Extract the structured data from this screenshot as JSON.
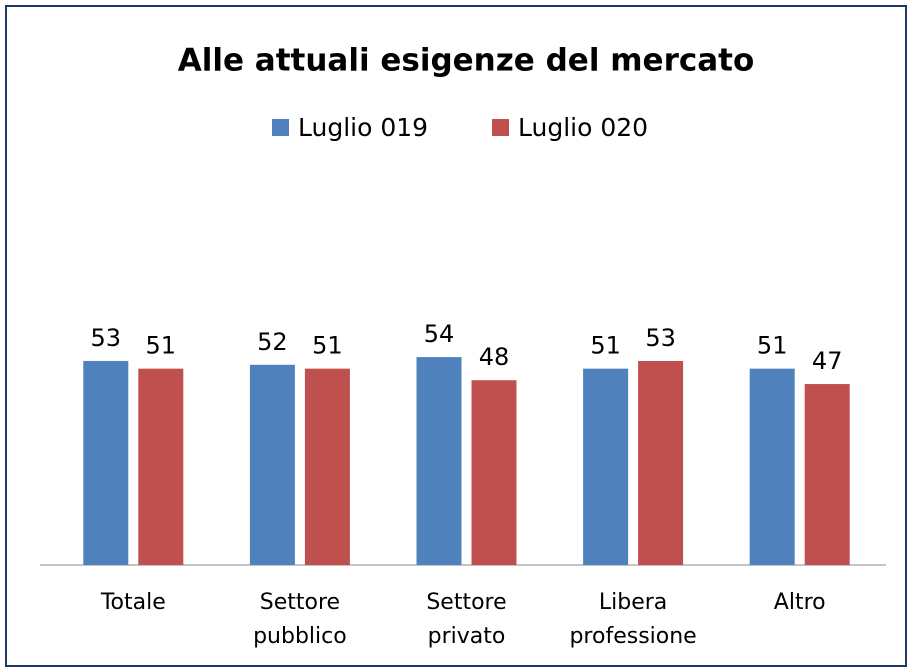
{
  "chart_data": {
    "type": "bar",
    "title": "Alle attuali esigenze del mercato",
    "categories": [
      "Totale",
      "Settore pubblico",
      "Settore privato",
      "Libera professione",
      "Altro"
    ],
    "series": [
      {
        "name": "Luglio 019",
        "color": "#4f81bd",
        "values": [
          53,
          52,
          54,
          51,
          51
        ]
      },
      {
        "name": "Luglio 020",
        "color": "#c0504d",
        "values": [
          51,
          51,
          48,
          53,
          47
        ]
      }
    ],
    "ylim": [
      0,
      100
    ],
    "legend": "top"
  }
}
